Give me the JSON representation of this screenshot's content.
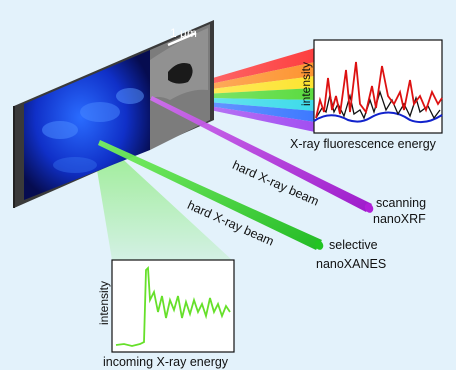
{
  "sample": {
    "scalebar_label": "1 µm"
  },
  "xrf_plot": {
    "ylabel": "intensity",
    "xlabel": "X-ray fluorescence energy"
  },
  "xanes_plot": {
    "ylabel": "intensity",
    "xlabel": "incoming X-ray energy"
  },
  "beams": {
    "upper_label": "hard X-ray beam",
    "lower_label": "hard X-ray beam"
  },
  "techniques": {
    "scanning_line1": "scanning",
    "scanning_line2": "nanoXRF",
    "selective_line1": "selective",
    "selective_line2": "nanoXANES"
  },
  "colors": {
    "background": "#e3f2fb",
    "purple_beam": "#b020d8",
    "green_beam": "#33dd22",
    "xrf_red": "#dd1111",
    "xrf_black": "#111111",
    "xrf_blue": "#1122cc",
    "xanes_green": "#66e02a"
  }
}
